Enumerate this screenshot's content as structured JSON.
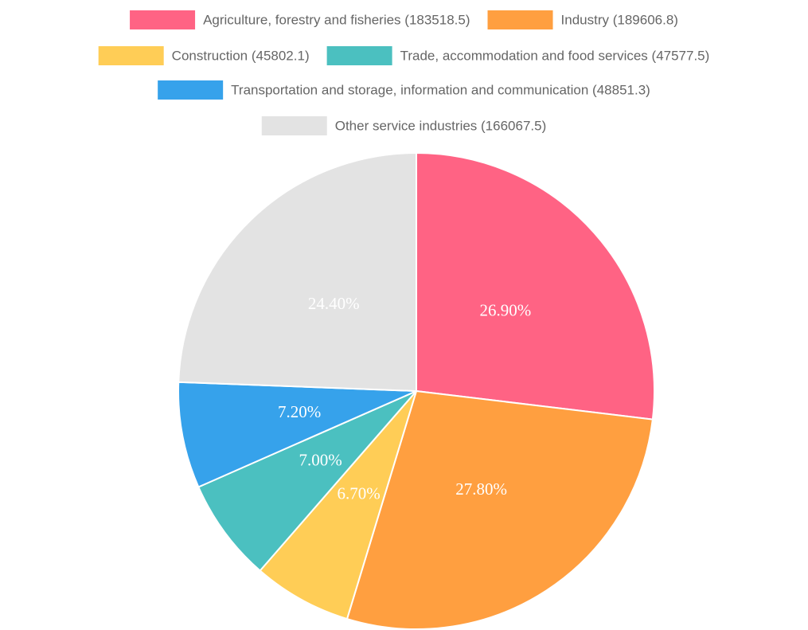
{
  "chart_data": {
    "type": "pie",
    "categories": [
      "Agriculture, forestry and fisheries (183518.5)",
      "Industry (189606.8)",
      "Construction (45802.1)",
      "Trade, accommodation and food services (47577.5)",
      "Transportation and storage, information and communication (48851.3)",
      "Other service industries (166067.5)"
    ],
    "values": [
      26.9,
      27.8,
      6.7,
      7.0,
      7.2,
      24.4
    ],
    "value_labels": [
      "26.90%",
      "27.80%",
      "6.70%",
      "7.00%",
      "7.20%",
      "24.40%"
    ],
    "colors": [
      "#ff6384",
      "#ff9f40",
      "#ffcd56",
      "#4bc0c0",
      "#36a2eb",
      "#e3e3e3"
    ],
    "legend": "top"
  }
}
